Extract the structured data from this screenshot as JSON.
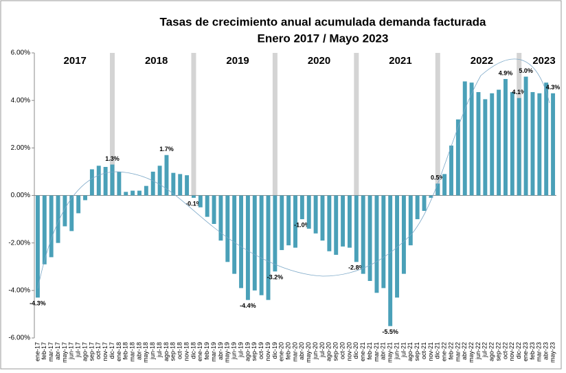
{
  "chart_data": {
    "type": "bar",
    "title": "Tasas de crecimiento anual acumulada demanda facturada",
    "subtitle": "Enero 2017 / Mayo 2023",
    "categories": [
      "ene-17",
      "feb-17",
      "mar-17",
      "abr-17",
      "may-17",
      "jun-17",
      "jul-17",
      "ago-17",
      "sep-17",
      "oct-17",
      "nov-17",
      "dic-17",
      "ene-18",
      "feb-18",
      "mar-18",
      "abr-18",
      "may-18",
      "jun-18",
      "jul-18",
      "ago-18",
      "sep-18",
      "oct-18",
      "nov-18",
      "dic-18",
      "ene-19",
      "feb-19",
      "mar-19",
      "abr-19",
      "may-19",
      "jun-19",
      "jul-19",
      "ago-19",
      "sep-19",
      "oct-19",
      "nov-19",
      "dic-19",
      "ene-20",
      "feb-20",
      "mar-20",
      "abr-20",
      "may-20",
      "jun-20",
      "jul-20",
      "ago-20",
      "sep-20",
      "oct-20",
      "nov-20",
      "dic-20",
      "ene-21",
      "feb-21",
      "mar-21",
      "abr-21",
      "may-21",
      "jun-21",
      "jul-21",
      "ago-21",
      "sep-21",
      "oct-21",
      "nov-21",
      "dic-21",
      "ene-22",
      "feb-22",
      "mar-22",
      "abr-22",
      "may-22",
      "jun-22",
      "jul-22",
      "ago-22",
      "sep-22",
      "oct-22",
      "nov-22",
      "dic-22",
      "ene-23",
      "feb-23",
      "mar-23",
      "abr-23",
      "may-23"
    ],
    "values": [
      -4.3,
      -2.9,
      -2.6,
      -2.0,
      -1.3,
      -1.5,
      -0.75,
      -0.2,
      1.1,
      1.25,
      1.2,
      1.3,
      1.0,
      0.15,
      0.2,
      0.2,
      0.4,
      1.0,
      1.25,
      1.7,
      0.95,
      0.9,
      0.85,
      -0.1,
      -0.5,
      -0.9,
      -1.2,
      -1.9,
      -2.8,
      -3.3,
      -3.9,
      -4.4,
      -4.0,
      -4.2,
      -4.4,
      -3.2,
      -2.3,
      -2.1,
      -2.2,
      -1.0,
      -1.4,
      -1.6,
      -1.9,
      -2.35,
      -2.5,
      -2.15,
      -2.2,
      -2.8,
      -3.3,
      -3.6,
      -4.1,
      -3.9,
      -5.5,
      -4.3,
      -3.3,
      -2.1,
      -1.0,
      -0.65,
      -0.1,
      0.5,
      0.9,
      2.1,
      3.2,
      4.8,
      4.75,
      4.35,
      4.05,
      4.3,
      4.45,
      4.9,
      4.35,
      4.1,
      5.0,
      4.35,
      4.3,
      4.75,
      4.3
    ],
    "value_labels": [
      "-4.3%",
      null,
      null,
      null,
      null,
      null,
      null,
      null,
      null,
      null,
      null,
      "1.3%",
      null,
      null,
      null,
      null,
      null,
      null,
      null,
      "1.7%",
      null,
      null,
      null,
      "-0.1%",
      null,
      null,
      null,
      null,
      null,
      null,
      null,
      "-4.4%",
      null,
      null,
      null,
      "-3.2%",
      null,
      null,
      null,
      "-1.0%",
      null,
      null,
      null,
      null,
      null,
      null,
      null,
      "-2.8%",
      null,
      null,
      null,
      null,
      "-5.5%",
      null,
      null,
      null,
      null,
      null,
      null,
      "0.5%",
      null,
      null,
      null,
      null,
      null,
      null,
      null,
      null,
      null,
      "4.9%",
      null,
      "4.1%",
      "5.0%",
      null,
      null,
      null,
      "4.3%"
    ],
    "years": [
      "2017",
      "2018",
      "2019",
      "2020",
      "2021",
      "2022",
      "2023"
    ],
    "color": "#4aa0b8",
    "ylim": [
      -6,
      6
    ],
    "yticks": [
      {
        "value": -6,
        "label": "-6.00%"
      },
      {
        "value": -4,
        "label": "-4.00%"
      },
      {
        "value": -2,
        "label": "-2.00%"
      },
      {
        "value": 0,
        "label": "0.00%"
      },
      {
        "value": 2,
        "label": "2.00%"
      },
      {
        "value": 4,
        "label": "4.00%"
      },
      {
        "value": 6,
        "label": "6.00%"
      }
    ]
  }
}
